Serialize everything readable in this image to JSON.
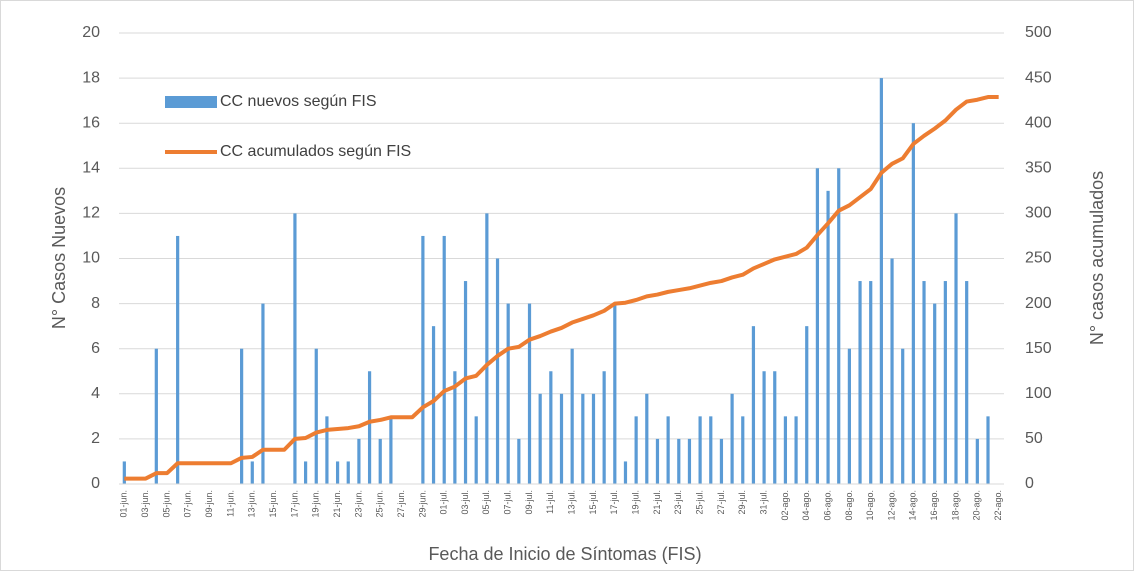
{
  "chart_data": {
    "type": "bar",
    "x_label": "Fecha de Inicio de Síntomas (FIS)",
    "y_label": "N° Casos Nuevos",
    "y2_label": "N° casos acumulados",
    "categories": [
      "01-jun.",
      null,
      "03-jun.",
      null,
      "05-jun.",
      null,
      "07-jun.",
      null,
      "09-jun.",
      null,
      "11-jun.",
      null,
      "13-jun.",
      null,
      "15-jun.",
      null,
      "17-jun.",
      null,
      "19-jun.",
      null,
      "21-jun.",
      null,
      "23-jun.",
      null,
      "25-jun.",
      null,
      "27-jun.",
      null,
      "29-jun.",
      null,
      "01-jul.",
      null,
      "03-jul.",
      null,
      "05-jul.",
      null,
      "07-jul.",
      null,
      "09-jul.",
      null,
      "11-jul.",
      null,
      "13-jul.",
      null,
      "15-jul.",
      null,
      "17-jul.",
      null,
      "19-jul.",
      null,
      "21-jul.",
      null,
      "23-jul.",
      null,
      "25-jul.",
      null,
      "27-jul.",
      null,
      "29-jul.",
      null,
      "31-jul.",
      null,
      "02-ago.",
      null,
      "04-ago.",
      null,
      "06-ago.",
      null,
      "08-ago.",
      null,
      "10-ago.",
      null,
      "12-ago.",
      null,
      "14-ago.",
      null,
      "16-ago.",
      null,
      "18-ago.",
      null,
      "20-ago.",
      null,
      "22-ago."
    ],
    "series": [
      {
        "name": "CC nuevos según FIS",
        "type": "bar",
        "color": "#5b9bd5",
        "values": [
          1,
          0,
          0,
          6,
          0,
          11,
          0,
          0,
          0,
          0,
          0,
          6,
          1,
          8,
          0,
          0,
          12,
          1,
          6,
          3,
          1,
          1,
          2,
          5,
          2,
          3,
          0,
          0,
          11,
          7,
          11,
          5,
          9,
          3,
          12,
          10,
          8,
          2,
          8,
          4,
          5,
          4,
          6,
          4,
          4,
          5,
          8,
          1,
          3,
          4,
          2,
          3,
          2,
          2,
          3,
          3,
          2,
          4,
          3,
          7,
          5,
          5,
          3,
          3,
          7,
          14,
          13,
          14,
          6,
          9,
          9,
          18,
          10,
          6,
          16,
          9,
          8,
          9,
          12,
          9,
          2,
          3,
          0
        ]
      },
      {
        "name": "CC acumulados según FIS",
        "type": "line",
        "axis": "y2",
        "color": "#ed7d31",
        "values": [
          6,
          6,
          6,
          12,
          12,
          23,
          23,
          23,
          23,
          23,
          23,
          29,
          30,
          38,
          38,
          38,
          50,
          51,
          57,
          60,
          61,
          62,
          64,
          69,
          71,
          74,
          74,
          74,
          85,
          92,
          103,
          108,
          117,
          120,
          132,
          142,
          150,
          152,
          160,
          164,
          169,
          173,
          179,
          183,
          187,
          192,
          200,
          201,
          204,
          208,
          210,
          213,
          215,
          217,
          220,
          223,
          225,
          229,
          232,
          239,
          244,
          249,
          252,
          255,
          262,
          276,
          289,
          303,
          309,
          318,
          327,
          345,
          355,
          361,
          377,
          386,
          394,
          403,
          415,
          424,
          426,
          429,
          429
        ]
      }
    ],
    "ylim": [
      0,
      20
    ],
    "yticks": [
      0,
      2,
      4,
      6,
      8,
      10,
      12,
      14,
      16,
      18,
      20
    ],
    "y2lim": [
      0,
      500
    ],
    "y2ticks": [
      0,
      50,
      100,
      150,
      200,
      250,
      300,
      350,
      400,
      450,
      500
    ],
    "grid": true,
    "legend": "top-left"
  }
}
